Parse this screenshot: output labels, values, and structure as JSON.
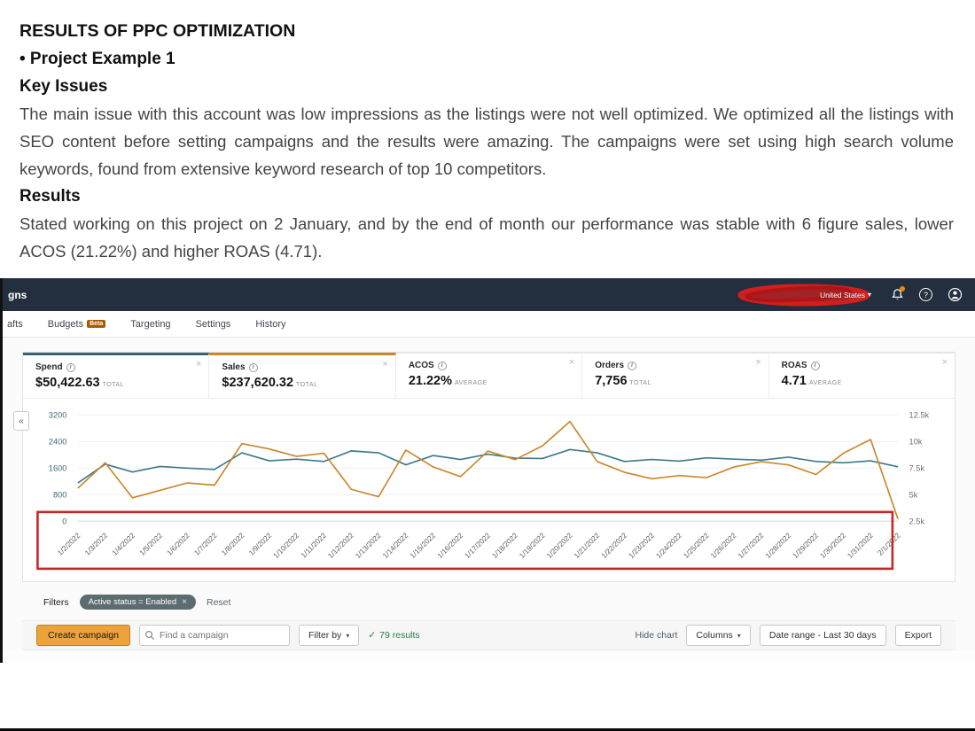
{
  "slide": {
    "title": "RESULTS OF PPC OPTIMIZATION",
    "bullet": "• Project Example 1",
    "key_issues_heading": "Key Issues",
    "key_issues_text": "The main issue with this account was low impressions as the listings were not well optimized. We optimized all the listings with SEO content before setting campaigns and the results were amazing. The campaigns were set using high search volume keywords, found from extensive keyword research of top 10 competitors.",
    "results_heading": "Results",
    "results_text": "Stated working on this project on 2 January, and by the end of month our performance was stable with 6 figure sales, lower ACOS (21.22%) and higher ROAS (4.71)."
  },
  "navbar": {
    "brand": "gns",
    "region": "United States"
  },
  "tabs": [
    {
      "label": "afts"
    },
    {
      "label": "Budgets",
      "badge": "Beta"
    },
    {
      "label": "Targeting"
    },
    {
      "label": "Settings"
    },
    {
      "label": "History"
    }
  ],
  "metrics": [
    {
      "label": "Spend",
      "value": "$50,422.63",
      "suffix": "TOTAL",
      "accent": "#33646f"
    },
    {
      "label": "Sales",
      "value": "$237,620.32",
      "suffix": "TOTAL",
      "accent": "#c8882a"
    },
    {
      "label": "ACOS",
      "value": "21.22%",
      "suffix": "AVERAGE",
      "accent": ""
    },
    {
      "label": "Orders",
      "value": "7,756",
      "suffix": "TOTAL",
      "accent": ""
    },
    {
      "label": "ROAS",
      "value": "4.71",
      "suffix": "AVERAGE",
      "accent": ""
    }
  ],
  "chart_data": {
    "type": "line",
    "x": [
      "1/2/2022",
      "1/3/2022",
      "1/4/2022",
      "1/5/2022",
      "1/6/2022",
      "1/7/2022",
      "1/8/2022",
      "1/9/2022",
      "1/10/2022",
      "1/11/2022",
      "1/12/2022",
      "1/13/2022",
      "1/14/2022",
      "1/15/2022",
      "1/16/2022",
      "1/17/2022",
      "1/18/2022",
      "1/19/2022",
      "1/20/2022",
      "1/21/2022",
      "1/22/2022",
      "1/23/2022",
      "1/24/2022",
      "1/25/2022",
      "1/26/2022",
      "1/27/2022",
      "1/28/2022",
      "1/29/2022",
      "1/30/2022",
      "1/31/2022",
      "2/1/2022"
    ],
    "series": [
      {
        "name": "Spend",
        "axis": "left",
        "color": "#3d7a8c",
        "values": [
          1150,
          1720,
          1480,
          1650,
          1600,
          1560,
          2060,
          1820,
          1870,
          1800,
          2120,
          2060,
          1700,
          1980,
          1860,
          2020,
          1900,
          1890,
          2160,
          2060,
          1800,
          1860,
          1810,
          1910,
          1870,
          1840,
          1930,
          1800,
          1760,
          1820,
          1640
        ]
      },
      {
        "name": "Sales",
        "axis": "right",
        "color": "#c8882a",
        "values": [
          5600,
          8000,
          4700,
          5400,
          6100,
          5900,
          9800,
          9300,
          8600,
          8900,
          5500,
          4800,
          9200,
          7600,
          6700,
          9100,
          8300,
          9600,
          11900,
          8100,
          7100,
          6500,
          6800,
          6600,
          7600,
          8100,
          7800,
          6900,
          8900,
          10200,
          2700
        ]
      }
    ],
    "left_axis": {
      "ticks": [
        "0",
        "800",
        "1600",
        "2400",
        "3200"
      ],
      "range": [
        0,
        3200
      ],
      "color": "#3d6b77"
    },
    "right_axis": {
      "ticks": [
        "2.5k",
        "5k",
        "7.5k",
        "10k",
        "12.5k"
      ],
      "range": [
        2500,
        12500
      ],
      "color": "#6f6f6f"
    },
    "grid": true,
    "legend_position": "none",
    "annotation": "red box highlighting the x-axis date labels",
    "annotation_color": "#c42727"
  },
  "filters": {
    "label": "Filters",
    "pill": "Active status = Enabled",
    "reset": "Reset"
  },
  "toolbar": {
    "create_campaign": "Create campaign",
    "search_placeholder": "Find a campaign",
    "filter_by": "Filter by",
    "results": "79 results",
    "hide_chart": "Hide chart",
    "columns": "Columns",
    "date_range": "Date range - Last 30 days",
    "export": "Export"
  },
  "icons": {
    "collapse": "«",
    "caret": "▾",
    "check": "✓",
    "close": "×",
    "question": "?"
  },
  "colors": {
    "navbar_bg": "#232f3e",
    "create_button": "#eda33c",
    "redaction_red": "#d21e1e"
  }
}
